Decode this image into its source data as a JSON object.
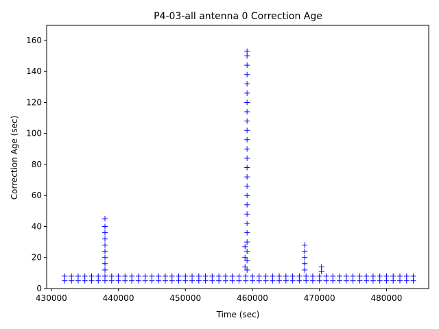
{
  "chart_data": {
    "type": "scatter",
    "title": "P4-03-all antenna 0 Correction Age",
    "xlabel": "Time (sec)",
    "ylabel": "Correction Age (sec)",
    "xlim": [
      429300,
      486300
    ],
    "ylim": [
      0,
      169.7
    ],
    "xticks": [
      430000,
      440000,
      450000,
      460000,
      470000,
      480000
    ],
    "yticks": [
      0,
      20,
      40,
      60,
      80,
      100,
      120,
      140,
      160
    ],
    "series": [
      {
        "color": "#0000ff",
        "marker": "+",
        "x": [
          432000,
          433000,
          434000,
          435000,
          436000,
          437000,
          438000,
          439000,
          440000,
          441000,
          442000,
          443000,
          444000,
          445000,
          446000,
          447000,
          448000,
          449000,
          450000,
          451000,
          452000,
          453000,
          454000,
          455000,
          456000,
          457000,
          458000,
          459000,
          460000,
          461000,
          462000,
          463000,
          464000,
          465000,
          466000,
          467000,
          468000,
          469000,
          470000,
          471000,
          472000,
          473000,
          474000,
          475000,
          476000,
          477000,
          478000,
          479000,
          480000,
          481000,
          482000,
          483000,
          484000,
          432000,
          433000,
          434000,
          435000,
          436000,
          437000,
          438000,
          439000,
          440000,
          441000,
          442000,
          443000,
          444000,
          445000,
          446000,
          447000,
          448000,
          449000,
          450000,
          451000,
          452000,
          453000,
          454000,
          455000,
          456000,
          457000,
          458000,
          459000,
          460000,
          461000,
          462000,
          463000,
          464000,
          465000,
          466000,
          467000,
          468000,
          469000,
          470000,
          471000,
          472000,
          473000,
          474000,
          475000,
          476000,
          477000,
          478000,
          479000,
          480000,
          481000,
          482000,
          483000,
          484000,
          438000,
          438000,
          438000,
          438000,
          438000,
          438000,
          438000,
          438000,
          438000,
          459200,
          459200,
          459200,
          459200,
          459200,
          459200,
          459200,
          459200,
          459200,
          459200,
          459200,
          459200,
          459200,
          459200,
          459200,
          459200,
          459200,
          459200,
          459200,
          459200,
          459200,
          459200,
          459200,
          459200,
          459200,
          458900,
          458900,
          458900,
          467800,
          467800,
          467800,
          467800,
          467800,
          470300,
          470300
        ],
        "y": [
          5,
          5,
          5,
          5,
          5,
          5,
          5,
          5,
          5,
          5,
          5,
          5,
          5,
          5,
          5,
          5,
          5,
          5,
          5,
          5,
          5,
          5,
          5,
          5,
          5,
          5,
          5,
          5,
          5,
          5,
          5,
          5,
          5,
          5,
          5,
          5,
          5,
          5,
          5,
          5,
          5,
          5,
          5,
          5,
          5,
          5,
          5,
          5,
          5,
          5,
          5,
          5,
          5,
          8,
          8,
          8,
          8,
          8,
          8,
          8,
          8,
          8,
          8,
          8,
          8,
          8,
          8,
          8,
          8,
          8,
          8,
          8,
          8,
          8,
          8,
          8,
          8,
          8,
          8,
          8,
          8,
          8,
          8,
          8,
          8,
          8,
          8,
          8,
          8,
          8,
          8,
          8,
          8,
          8,
          8,
          8,
          8,
          8,
          8,
          8,
          8,
          8,
          8,
          8,
          8,
          8,
          12,
          16,
          20,
          24,
          28,
          32,
          36,
          40,
          45,
          12,
          18,
          24,
          30,
          36,
          42,
          48,
          54,
          60,
          66,
          72,
          78,
          84,
          90,
          96,
          102,
          108,
          114,
          120,
          126,
          132,
          138,
          144,
          150,
          153,
          14,
          20,
          27,
          12,
          16,
          20,
          24,
          28,
          11,
          14
        ]
      }
    ]
  }
}
